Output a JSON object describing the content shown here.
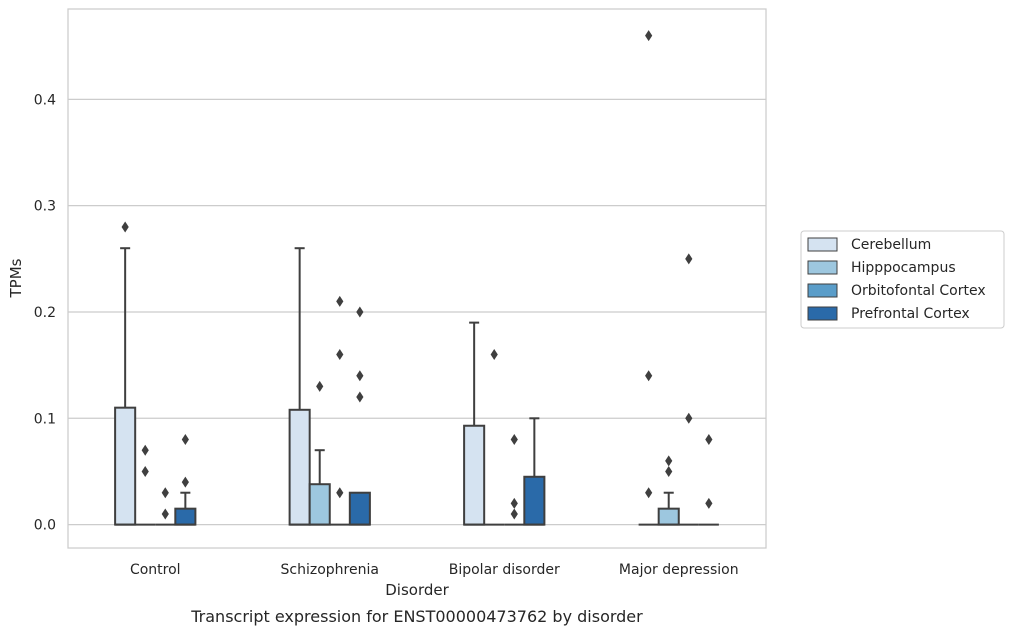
{
  "caption": "Transcript expression for ENST00000473762 by disorder",
  "chart_data": {
    "type": "box",
    "title": "",
    "xlabel": "Disorder",
    "ylabel": "TPMs",
    "ylim": [
      -0.022,
      0.485
    ],
    "yticks": [
      0.0,
      0.1,
      0.2,
      0.3,
      0.4
    ],
    "ytick_labels": [
      "0.0",
      "0.1",
      "0.2",
      "0.3",
      "0.4"
    ],
    "grid": "horizontal",
    "legend_position": "right",
    "categories": [
      "Control",
      "Schizophrenia",
      "Bipolar disorder",
      "Major depression"
    ],
    "series": [
      {
        "name": "Cerebellum",
        "color": "#d5e3f1",
        "boxes": [
          {
            "q1": 0.0,
            "median": 0.0,
            "q3": 0.11,
            "whisker_low": 0.0,
            "whisker_high": 0.26,
            "outliers": [
              0.28
            ]
          },
          {
            "q1": 0.0,
            "median": 0.0,
            "q3": 0.108,
            "whisker_low": 0.0,
            "whisker_high": 0.26,
            "outliers": []
          },
          {
            "q1": 0.0,
            "median": 0.0,
            "q3": 0.093,
            "whisker_low": 0.0,
            "whisker_high": 0.19,
            "outliers": []
          },
          {
            "q1": 0.0,
            "median": 0.0,
            "q3": 0.0,
            "whisker_low": 0.0,
            "whisker_high": 0.0,
            "outliers": [
              0.46,
              0.14,
              0.03
            ]
          }
        ]
      },
      {
        "name": "Hipppocampus",
        "color": "#9dc7df",
        "boxes": [
          {
            "q1": 0.0,
            "median": 0.0,
            "q3": 0.0,
            "whisker_low": 0.0,
            "whisker_high": 0.0,
            "outliers": [
              0.07,
              0.05
            ]
          },
          {
            "q1": 0.0,
            "median": 0.0,
            "q3": 0.038,
            "whisker_low": 0.0,
            "whisker_high": 0.07,
            "outliers": [
              0.13
            ]
          },
          {
            "q1": 0.0,
            "median": 0.0,
            "q3": 0.0,
            "whisker_low": 0.0,
            "whisker_high": 0.0,
            "outliers": [
              0.16
            ]
          },
          {
            "q1": 0.0,
            "median": 0.0,
            "q3": 0.015,
            "whisker_low": 0.0,
            "whisker_high": 0.03,
            "outliers": [
              0.06,
              0.05
            ]
          }
        ]
      },
      {
        "name": "Orbitofontal Cortex",
        "color": "#5a9dc9",
        "boxes": [
          {
            "q1": 0.0,
            "median": 0.0,
            "q3": 0.0,
            "whisker_low": 0.0,
            "whisker_high": 0.0,
            "outliers": [
              0.03,
              0.01
            ]
          },
          {
            "q1": 0.0,
            "median": 0.0,
            "q3": 0.0,
            "whisker_low": 0.0,
            "whisker_high": 0.0,
            "outliers": [
              0.21,
              0.16,
              0.03
            ]
          },
          {
            "q1": 0.0,
            "median": 0.0,
            "q3": 0.0,
            "whisker_low": 0.0,
            "whisker_high": 0.0,
            "outliers": [
              0.08,
              0.02,
              0.01
            ]
          },
          {
            "q1": 0.0,
            "median": 0.0,
            "q3": 0.0,
            "whisker_low": 0.0,
            "whisker_high": 0.0,
            "outliers": [
              0.25,
              0.1
            ]
          }
        ]
      },
      {
        "name": "Prefrontal Cortex",
        "color": "#2a6aa9",
        "boxes": [
          {
            "q1": 0.0,
            "median": 0.0,
            "q3": 0.015,
            "whisker_low": 0.0,
            "whisker_high": 0.03,
            "outliers": [
              0.08,
              0.04
            ]
          },
          {
            "q1": 0.0,
            "median": 0.0,
            "q3": 0.03,
            "whisker_low": 0.0,
            "whisker_high": 0.03,
            "outliers": [
              0.2,
              0.14,
              0.12
            ]
          },
          {
            "q1": 0.0,
            "median": 0.0,
            "q3": 0.045,
            "whisker_low": 0.0,
            "whisker_high": 0.1,
            "outliers": []
          },
          {
            "q1": 0.0,
            "median": 0.0,
            "q3": 0.0,
            "whisker_low": 0.0,
            "whisker_high": 0.0,
            "outliers": [
              0.08,
              0.02
            ]
          }
        ]
      }
    ]
  }
}
